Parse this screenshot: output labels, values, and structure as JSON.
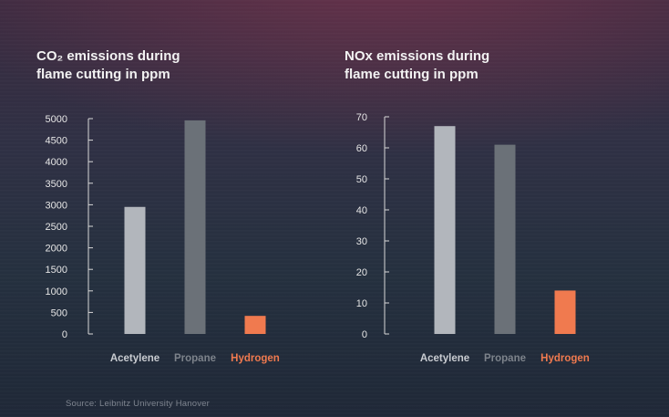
{
  "charts": [
    {
      "title_line1": "CO₂ emissions during",
      "title_line2": "flame cutting in ppm"
    },
    {
      "title_line1": "NOx emissions during",
      "title_line2": "flame cutting in ppm"
    }
  ],
  "source": "Source: Leibnitz University Hanover",
  "chart_data": [
    {
      "type": "bar",
      "title": "CO₂ emissions during flame cutting in ppm",
      "categories": [
        "Acetylene",
        "Propane",
        "Hydrogen"
      ],
      "values": [
        2950,
        4960,
        420
      ],
      "ylim": [
        0,
        5000
      ],
      "yticks": [
        0,
        500,
        1000,
        1500,
        2000,
        2500,
        3000,
        3500,
        4000,
        4500,
        5000
      ],
      "grid": false,
      "colors": [
        "#b2b6bc",
        "#6b7178",
        "#f07a4f"
      ],
      "label_colors": [
        "#c9ccd1",
        "#7d838b",
        "#f07a4f"
      ]
    },
    {
      "type": "bar",
      "title": "NOx emissions during flame cutting in ppm",
      "categories": [
        "Acetylene",
        "Propane",
        "Hydrogen"
      ],
      "values": [
        67,
        61,
        14
      ],
      "ylim": [
        0,
        70
      ],
      "yticks": [
        0,
        10,
        20,
        30,
        40,
        50,
        60,
        70
      ],
      "grid": false,
      "colors": [
        "#b2b6bc",
        "#6b7178",
        "#f07a4f"
      ],
      "label_colors": [
        "#c9ccd1",
        "#7d838b",
        "#f07a4f"
      ]
    }
  ]
}
